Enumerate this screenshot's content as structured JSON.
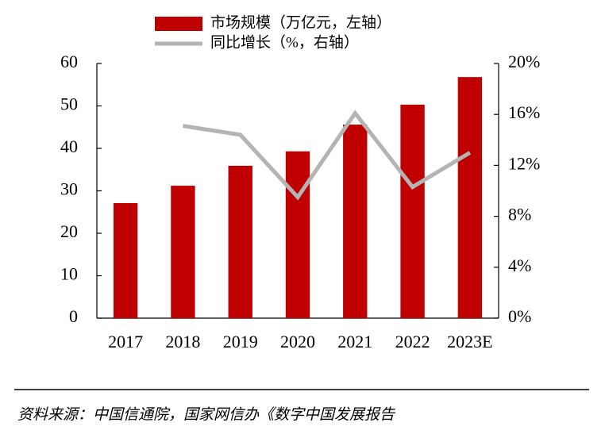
{
  "chart_data": {
    "type": "bar+line",
    "categories": [
      "2017",
      "2018",
      "2019",
      "2020",
      "2021",
      "2022",
      "2023E"
    ],
    "series": [
      {
        "name": "市场规模（万亿元，左轴）",
        "type": "bar",
        "color": "#c00000",
        "values": [
          27.1,
          31.2,
          35.9,
          39.3,
          45.6,
          50.3,
          56.8
        ]
      },
      {
        "name": "同比增长（%，右轴）",
        "type": "line",
        "axis": "y2",
        "color": "#b4b4b4",
        "values": [
          null,
          15.1,
          14.4,
          9.5,
          16.1,
          10.3,
          13.0
        ]
      }
    ],
    "ylim": [
      0,
      60
    ],
    "yticks": [
      0,
      10,
      20,
      30,
      40,
      50,
      60
    ],
    "y2lim": [
      0,
      20
    ],
    "y2ticks": [
      {
        "value": 0,
        "label": "0%"
      },
      {
        "value": 4,
        "label": "4%"
      },
      {
        "value": 8,
        "label": "8%"
      },
      {
        "value": 12,
        "label": "12%"
      },
      {
        "value": 16,
        "label": "16%"
      },
      {
        "value": 20,
        "label": "20%"
      }
    ],
    "legend": "top",
    "source": "资料来源：中国信通院，国家网信办《数字中国发展报告"
  }
}
